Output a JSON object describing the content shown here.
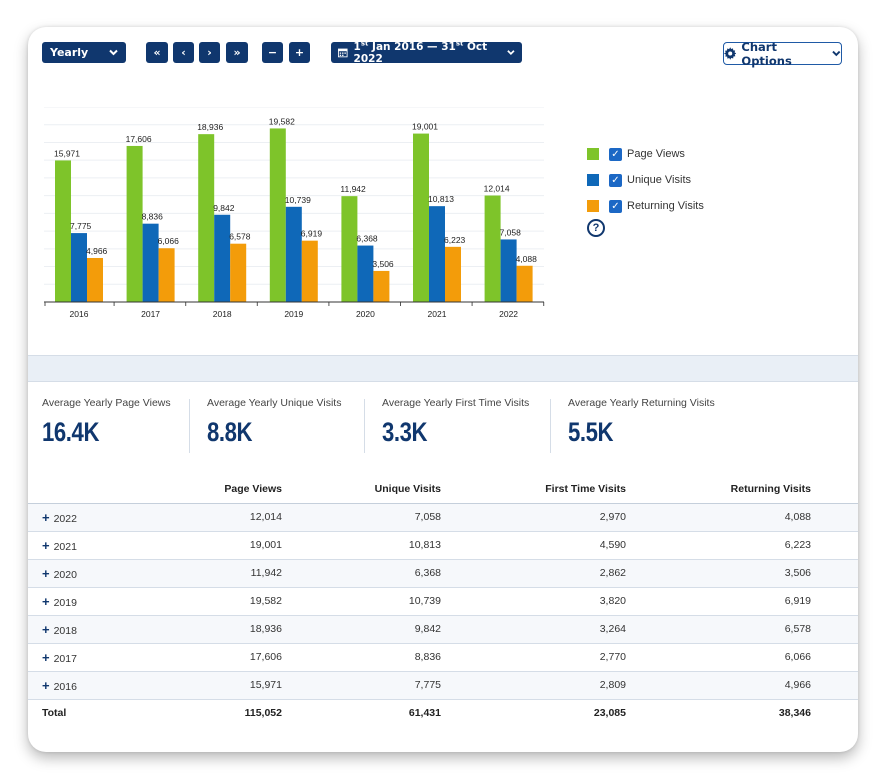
{
  "toolbar": {
    "period": "Yearly",
    "first": "«",
    "prev": "‹",
    "next": "›",
    "last": "»",
    "zoom_out": "−",
    "zoom_in": "+",
    "date_start_day": "1",
    "date_start_suffix": "st",
    "date_start_rest": "Jan 2016 —",
    "date_end_day": "31",
    "date_end_suffix": "st",
    "date_end_rest": "Oct 2022",
    "chart_options": "Chart Options"
  },
  "colors": {
    "page_views": "#7ec42a",
    "unique": "#0f68b8",
    "returning": "#f39c0a",
    "navy": "#10376e"
  },
  "chart_data": {
    "type": "bar",
    "categories": [
      "2016",
      "2017",
      "2018",
      "2019",
      "2020",
      "2021",
      "2022"
    ],
    "series": [
      {
        "name": "Page Views",
        "values": [
          15971,
          17606,
          18936,
          19582,
          11942,
          19001,
          12014
        ],
        "labels": [
          "15,971",
          "17,606",
          "18,936",
          "19,582",
          "11,942",
          "19,001",
          "12,014"
        ]
      },
      {
        "name": "Unique Visits",
        "values": [
          7775,
          8836,
          9842,
          10739,
          6368,
          10813,
          7058
        ],
        "labels": [
          "7,775",
          "8,836",
          "9,842",
          "10,739",
          "6,368",
          "10,813",
          "7,058"
        ]
      },
      {
        "name": "Returning Visits",
        "values": [
          4966,
          6066,
          6578,
          6919,
          3506,
          6223,
          4088
        ],
        "labels": [
          "4,966",
          "6,066",
          "6,578",
          "6,919",
          "3,506",
          "6,223",
          "4,088"
        ]
      }
    ],
    "ylim": [
      0,
      22000
    ],
    "grid": true,
    "legend": "right"
  },
  "legend": {
    "help": "?"
  },
  "stats": [
    {
      "label": "Average Yearly Page Views",
      "value": "16.4K"
    },
    {
      "label": "Average Yearly Unique Visits",
      "value": "8.8K"
    },
    {
      "label": "Average Yearly First Time Visits",
      "value": "3.3K"
    },
    {
      "label": "Average Yearly Returning Visits",
      "value": "5.5K"
    }
  ],
  "table": {
    "headers": [
      "",
      "Page Views",
      "Unique Visits",
      "First Time Visits",
      "Returning Visits"
    ],
    "rows": [
      [
        "2022",
        "12,014",
        "7,058",
        "2,970",
        "4,088"
      ],
      [
        "2021",
        "19,001",
        "10,813",
        "4,590",
        "6,223"
      ],
      [
        "2020",
        "11,942",
        "6,368",
        "2,862",
        "3,506"
      ],
      [
        "2019",
        "19,582",
        "10,739",
        "3,820",
        "6,919"
      ],
      [
        "2018",
        "18,936",
        "9,842",
        "3,264",
        "6,578"
      ],
      [
        "2017",
        "17,606",
        "8,836",
        "2,770",
        "6,066"
      ],
      [
        "2016",
        "15,971",
        "7,775",
        "2,809",
        "4,966"
      ]
    ],
    "total": [
      "Total",
      "115,052",
      "61,431",
      "23,085",
      "38,346"
    ]
  }
}
